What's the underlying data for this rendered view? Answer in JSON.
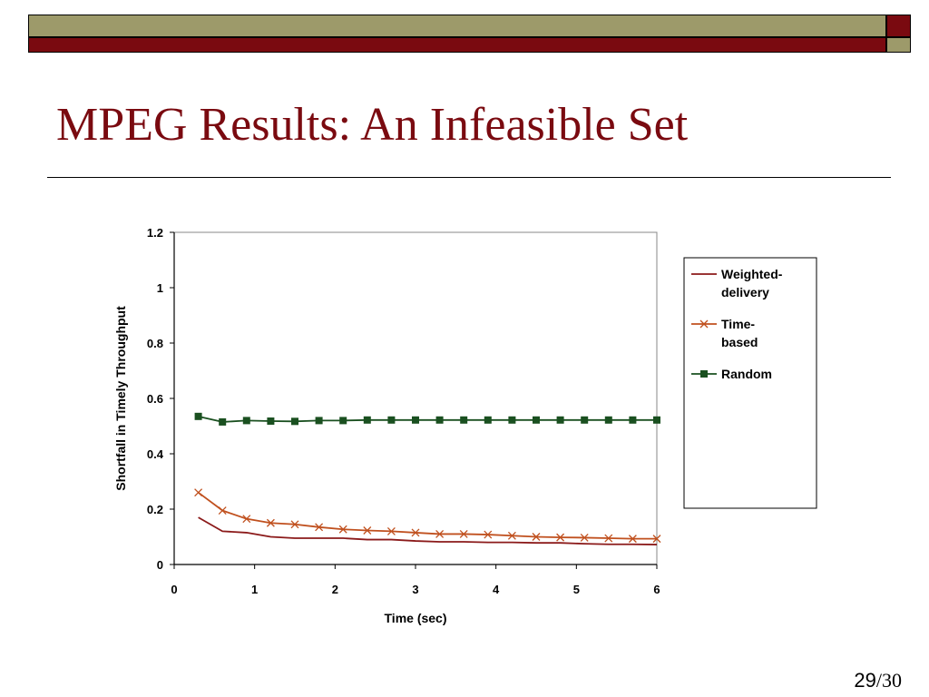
{
  "slide": {
    "title": "MPEG Results: An Infeasible Set",
    "page_current": "29",
    "page_total": "/30"
  },
  "colors": {
    "olive": "#9d9a6a",
    "dark_red": "#7a0a10",
    "weighted": "#8b1a1a",
    "time_based": "#c0501e",
    "random": "#1a5020"
  },
  "chart_data": {
    "type": "line",
    "title": "",
    "xlabel": "Time (sec)",
    "ylabel": "Shortfall in Timely Throughput",
    "xlim": [
      0,
      6
    ],
    "ylim": [
      0,
      1.2
    ],
    "xticks": [
      "0",
      "1",
      "2",
      "3",
      "4",
      "5",
      "6"
    ],
    "yticks": [
      "0",
      "0.2",
      "0.4",
      "0.6",
      "0.8",
      "1",
      "1.2"
    ],
    "grid": false,
    "legend_position": "right",
    "x": [
      0.3,
      0.6,
      0.9,
      1.2,
      1.5,
      1.8,
      2.1,
      2.4,
      2.7,
      3.0,
      3.3,
      3.6,
      3.9,
      4.2,
      4.5,
      4.8,
      5.1,
      5.4,
      5.7,
      6.0
    ],
    "series": [
      {
        "name": "Weighted-delivery",
        "marker": "none",
        "values": [
          0.17,
          0.12,
          0.115,
          0.1,
          0.095,
          0.095,
          0.095,
          0.09,
          0.09,
          0.085,
          0.082,
          0.082,
          0.08,
          0.08,
          0.078,
          0.078,
          0.075,
          0.073,
          0.073,
          0.072
        ]
      },
      {
        "name": "Time-based",
        "marker": "x",
        "values": [
          0.26,
          0.195,
          0.165,
          0.15,
          0.145,
          0.135,
          0.127,
          0.123,
          0.12,
          0.115,
          0.11,
          0.11,
          0.108,
          0.104,
          0.1,
          0.098,
          0.097,
          0.095,
          0.093,
          0.093
        ]
      },
      {
        "name": "Random",
        "marker": "square",
        "values": [
          0.535,
          0.515,
          0.52,
          0.518,
          0.517,
          0.52,
          0.52,
          0.522,
          0.522,
          0.522,
          0.522,
          0.522,
          0.522,
          0.522,
          0.522,
          0.522,
          0.522,
          0.522,
          0.522,
          0.522
        ]
      }
    ]
  }
}
